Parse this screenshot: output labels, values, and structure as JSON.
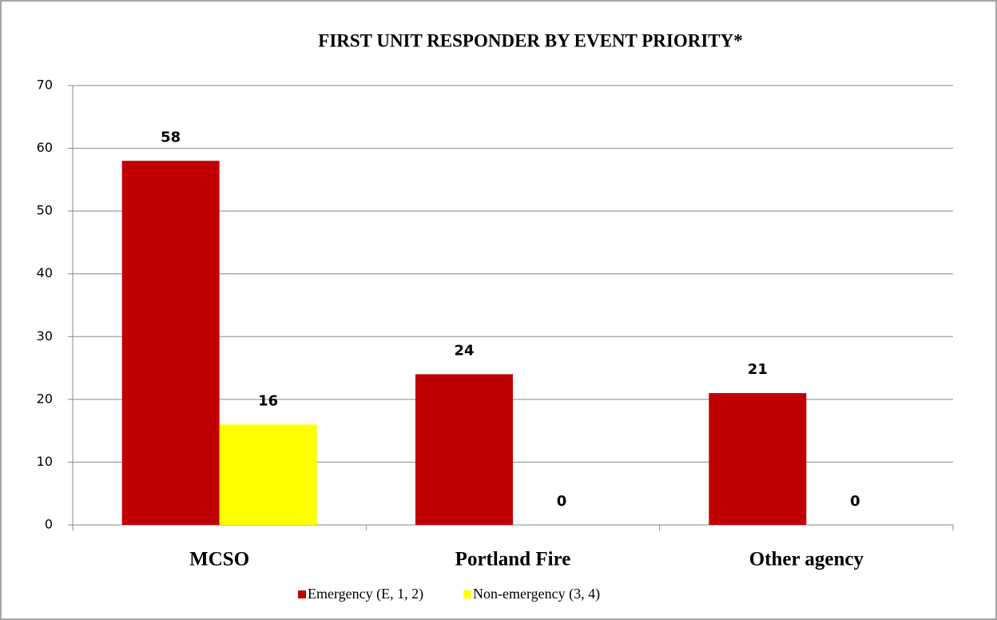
{
  "chart_data": {
    "type": "bar",
    "title": "FIRST UNIT RESPONDER BY EVENT PRIORITY*",
    "categories": [
      "MCSO",
      "Portland Fire",
      "Other agency"
    ],
    "series": [
      {
        "name": "Emergency (E, 1, 2)",
        "color": "#c00000",
        "values": [
          58,
          24,
          21
        ]
      },
      {
        "name": "Non-emergency (3, 4)",
        "color": "#ffff00",
        "values": [
          16,
          0,
          0
        ]
      }
    ],
    "ylim": [
      0,
      70
    ],
    "yticks": [
      0,
      10,
      20,
      30,
      40,
      50,
      60,
      70
    ],
    "grid": true,
    "legend": "bottom"
  }
}
